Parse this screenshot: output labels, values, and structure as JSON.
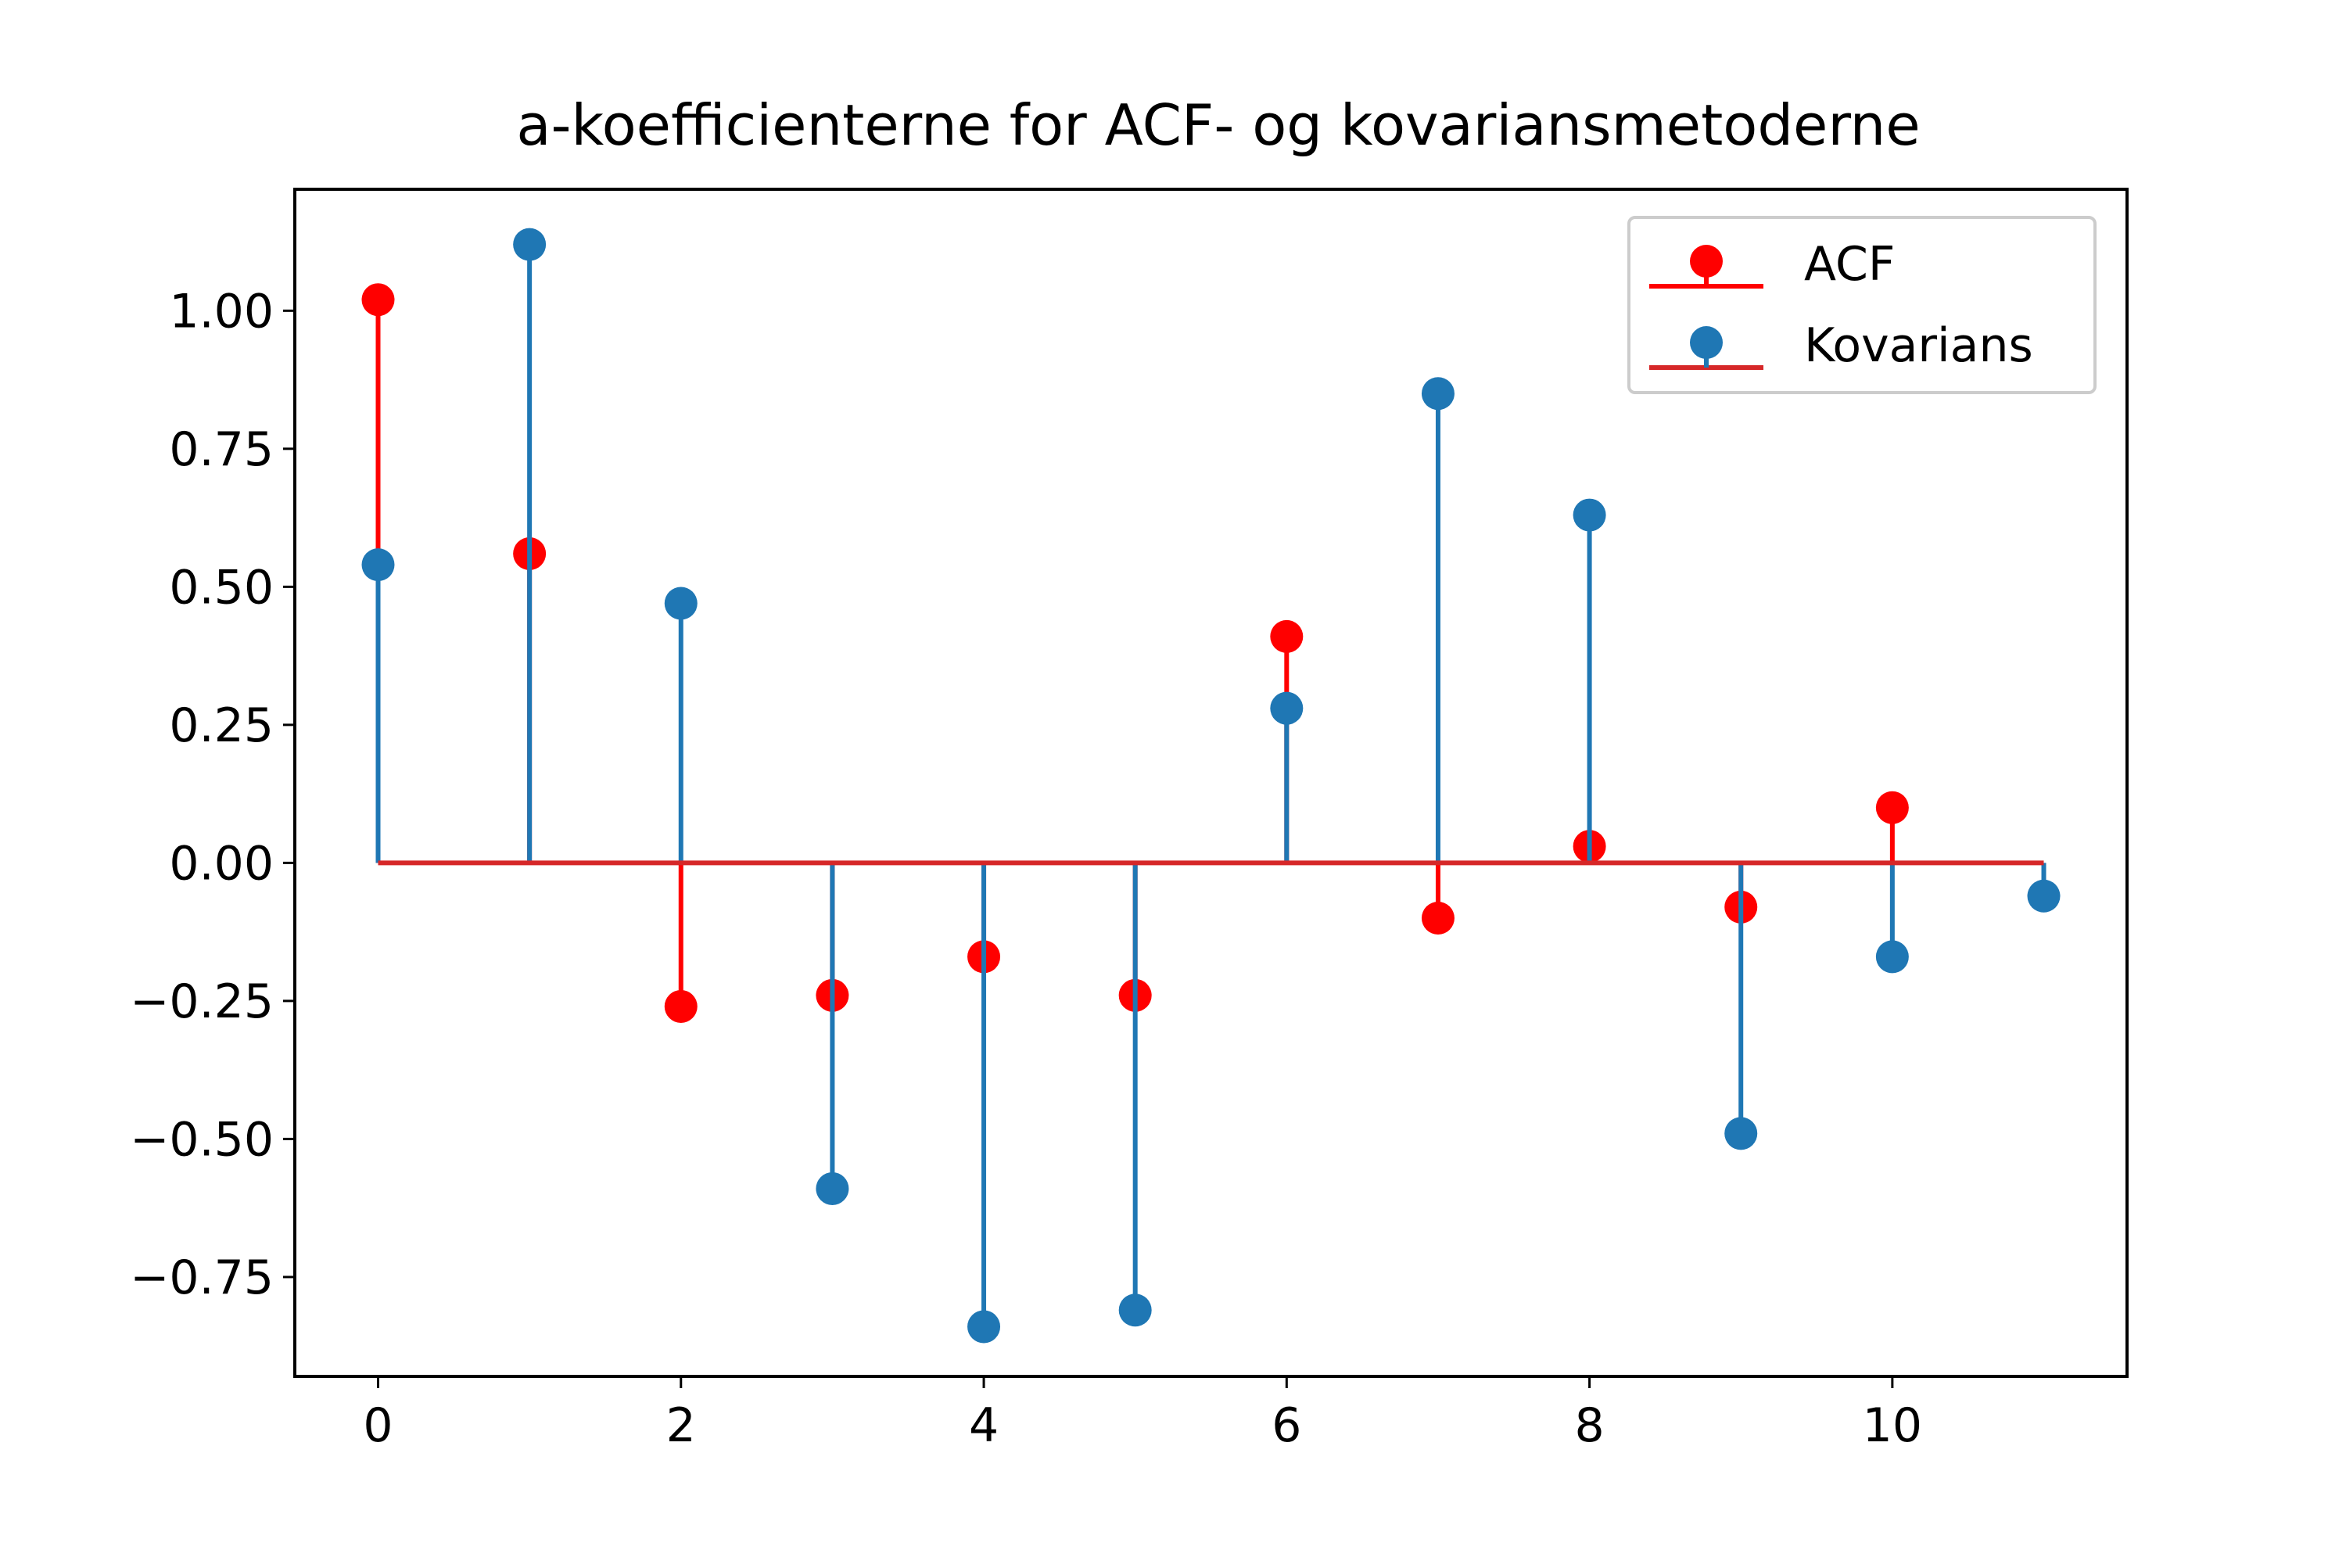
{
  "chart_data": {
    "type": "stem",
    "title": "a-koefficienterne for ACF- og kovariansmetoderne",
    "xlabel": "",
    "ylabel": "",
    "xlim": [
      -0.55,
      11.55
    ],
    "ylim": [
      -0.93,
      1.22
    ],
    "x_ticks": [
      0,
      2,
      4,
      6,
      8,
      10
    ],
    "x_tick_labels": [
      "0",
      "2",
      "4",
      "6",
      "8",
      "10"
    ],
    "y_ticks": [
      1.0,
      0.75,
      0.5,
      0.25,
      0.0,
      -0.25,
      -0.5,
      -0.75
    ],
    "y_tick_labels": [
      "1.00",
      "0.75",
      "0.50",
      "0.25",
      "0.00",
      "−0.25",
      "−0.50",
      "−0.75"
    ],
    "grid": false,
    "legend_position": "upper right",
    "baseline": 0,
    "x": [
      0,
      1,
      2,
      3,
      4,
      5,
      6,
      7,
      8,
      9,
      10,
      11
    ],
    "series": [
      {
        "name": "ACF",
        "color": "#ff0000",
        "values": [
          1.02,
          0.56,
          -0.26,
          -0.24,
          -0.17,
          -0.24,
          0.41,
          -0.1,
          0.03,
          -0.08,
          0.1,
          null
        ]
      },
      {
        "name": "Kovarians",
        "color": "#1f77b4",
        "values": [
          0.54,
          1.12,
          0.47,
          -0.59,
          -0.84,
          -0.81,
          0.28,
          0.85,
          0.63,
          -0.49,
          -0.17,
          -0.06
        ]
      }
    ],
    "baseline_color": "#d62728"
  }
}
